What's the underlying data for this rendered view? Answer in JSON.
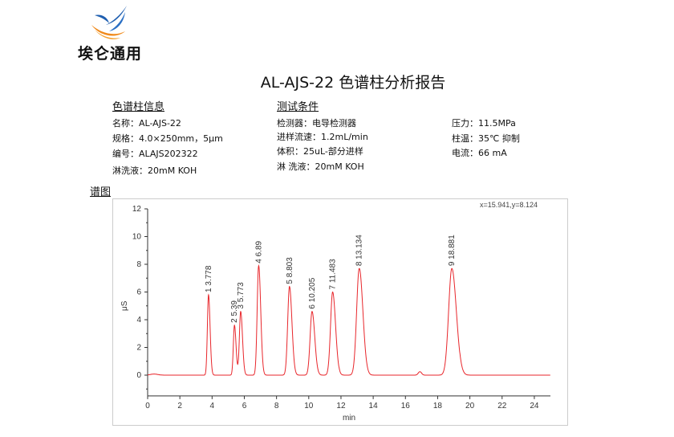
{
  "header": {
    "logo_text": "埃仑通用",
    "title": "AL-AJS-22 色谱柱分析报告"
  },
  "column_info": {
    "heading": "色谱柱信息",
    "lines": [
      "名称：AL-AJS-22",
      "规格：4.0×250mm，5μm",
      "编号：ALAJS202322",
      "淋洗液：20mM KOH"
    ]
  },
  "test_conditions": {
    "heading": "测试条件",
    "lines": [
      "检测器：电导检测器",
      "进样流速：1.2mL/min",
      "体积：25uL-部分进样",
      "淋 洗液：20mM KOH"
    ],
    "lines2": [
      "压力：11.5MPa",
      "柱温：35℃ 抑制",
      "电流：66 mA"
    ]
  },
  "spectrum_label": "谱图",
  "cursor_readout": "x=15.941,y=8.124",
  "chart_data": {
    "type": "line",
    "xlabel": "min",
    "ylabel": "μS",
    "xlim": [
      0,
      25
    ],
    "ylim": [
      -1.5,
      12
    ],
    "xticks": [
      0,
      2,
      4,
      6,
      8,
      10,
      12,
      14,
      16,
      18,
      20,
      22,
      24
    ],
    "yticks": [
      0,
      2,
      4,
      6,
      8,
      10,
      12
    ],
    "line_color": "#e8262b",
    "peaks": [
      {
        "label": "1  3.778",
        "rt": 3.778,
        "height": 5.8,
        "width": 0.07
      },
      {
        "label": "2  5.39",
        "rt": 5.39,
        "height": 3.6,
        "width": 0.07
      },
      {
        "label": "3  5.773",
        "rt": 5.773,
        "height": 4.6,
        "width": 0.08
      },
      {
        "label": "4  6.89",
        "rt": 6.89,
        "height": 7.9,
        "width": 0.09
      },
      {
        "label": "5  8.803",
        "rt": 8.803,
        "height": 6.4,
        "width": 0.11
      },
      {
        "label": "6  10.205",
        "rt": 10.205,
        "height": 4.6,
        "width": 0.12
      },
      {
        "label": "7  11.483",
        "rt": 11.483,
        "height": 6.0,
        "width": 0.13
      },
      {
        "label": "8  13.134",
        "rt": 13.134,
        "height": 7.7,
        "width": 0.16
      },
      {
        "label": "9  18.881",
        "rt": 18.881,
        "height": 7.7,
        "width": 0.2
      }
    ]
  }
}
